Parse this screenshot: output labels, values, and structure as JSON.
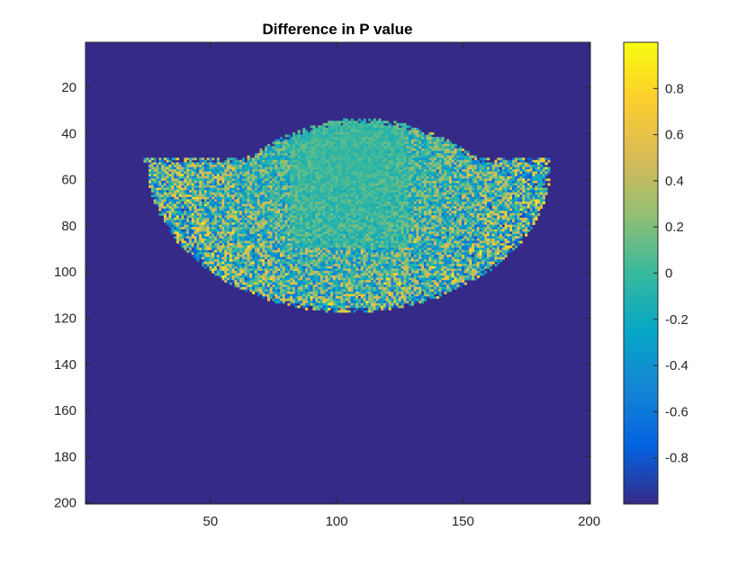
{
  "chart_data": {
    "type": "heatmap",
    "title": "Difference in P value",
    "xlabel": "",
    "ylabel": "",
    "x_range": [
      0.5,
      200.5
    ],
    "y_range": [
      0.5,
      200.5
    ],
    "y_direction": "reversed",
    "x_ticks": [
      50,
      100,
      150,
      200
    ],
    "x_tick_labels": [
      "50",
      "100",
      "150",
      "200"
    ],
    "y_ticks": [
      20,
      40,
      60,
      80,
      100,
      120,
      140,
      160,
      180,
      200
    ],
    "y_tick_labels": [
      "20",
      "40",
      "60",
      "80",
      "100",
      "120",
      "140",
      "160",
      "180",
      "200"
    ],
    "grid": false,
    "background_value": -1,
    "region": {
      "x_extent": [
        24,
        184
      ],
      "top_flat_row": 51,
      "dome_peak": {
        "x": 110,
        "y": 34
      },
      "bottom_peak": {
        "x": 105,
        "y": 115
      },
      "typical_value": 0,
      "value_spread": [
        -1,
        1
      ]
    },
    "colorbar": {
      "location": "right",
      "limits": [
        -1,
        1
      ],
      "ticks": [
        0.8,
        0.6,
        0.4,
        0.2,
        0,
        -0.2,
        -0.4,
        -0.6,
        -0.8
      ],
      "tick_labels": [
        "0.8",
        "0.6",
        "0.4",
        "0.2",
        "0",
        "-0.2",
        "-0.4",
        "-0.6",
        "-0.8"
      ],
      "colormap": "parula",
      "colormap_stops": [
        "#352a87",
        "#0363e1",
        "#1485d4",
        "#06a7c6",
        "#38b99e",
        "#92bf73",
        "#d9ba56",
        "#fcce2e",
        "#f9fb0e"
      ]
    }
  }
}
